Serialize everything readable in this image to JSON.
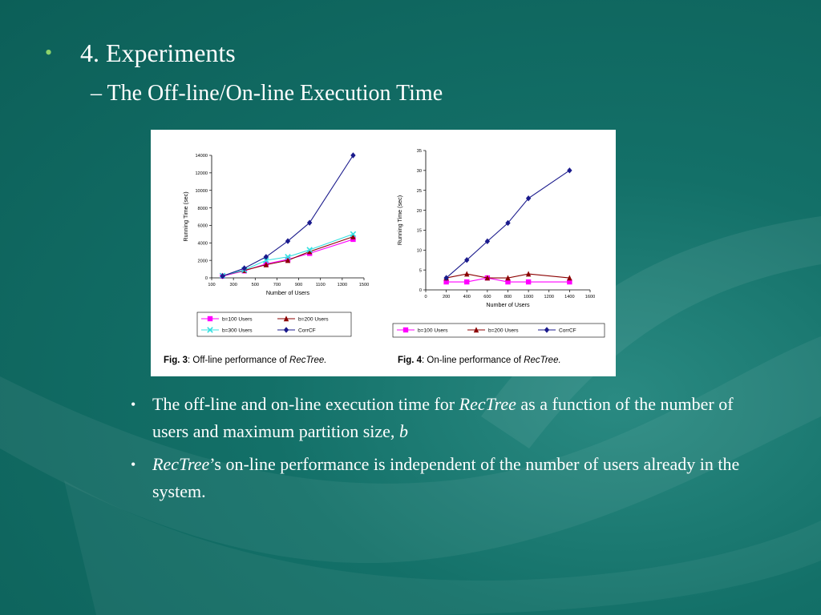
{
  "slide": {
    "heading": "4. Experiments",
    "subheading": "The Off-line/On-line Execution Time",
    "bullets": [
      {
        "before": "The off-line and on-line execution time for ",
        "em1": "RecTree",
        "after": " as a function of the number of users and maximum partition size, ",
        "em2": "b",
        "tail": ""
      },
      {
        "before": "",
        "em1": "RecTree",
        "after": "’s on-line performance is independent of the number of users already in the system.",
        "em2": "",
        "tail": ""
      }
    ]
  },
  "chart_data": [
    {
      "type": "line",
      "caption_label": "Fig. 3",
      "caption_text": ": Off-line performance of ",
      "caption_em": "RecTree.",
      "xlabel": "Number of Users",
      "ylabel": "Running Time (sec)",
      "xlim": [
        100,
        1500
      ],
      "ylim": [
        0,
        14000
      ],
      "xticks": [
        "100",
        "300",
        "500",
        "700",
        "900",
        "1100",
        "1300",
        "1500"
      ],
      "yticks": [
        "0",
        "2000",
        "4000",
        "6000",
        "8000",
        "10000",
        "12000",
        "14000"
      ],
      "legend_placement": "below",
      "series": [
        {
          "name": "b=100 Users",
          "color": "#ff00ff",
          "marker": "square",
          "x": [
            200,
            400,
            600,
            800,
            1000,
            1400
          ],
          "y": [
            200,
            800,
            1600,
            2100,
            2800,
            4400
          ]
        },
        {
          "name": "b=200 Users",
          "color": "#8b0000",
          "marker": "triangle",
          "x": [
            200,
            400,
            600,
            800,
            1000,
            1400
          ],
          "y": [
            250,
            850,
            1500,
            2000,
            3000,
            4700
          ]
        },
        {
          "name": "b=300 Users",
          "color": "#33e0e0",
          "marker": "x",
          "x": [
            200,
            400,
            600,
            800,
            1000,
            1400
          ],
          "y": [
            250,
            900,
            2000,
            2400,
            3200,
            5000
          ]
        },
        {
          "name": "CorrCF",
          "color": "#1a1a8c",
          "marker": "diamond",
          "x": [
            200,
            400,
            600,
            800,
            1000,
            1400
          ],
          "y": [
            200,
            1100,
            2400,
            4200,
            6300,
            14000
          ]
        }
      ]
    },
    {
      "type": "line",
      "caption_label": "Fig. 4",
      "caption_text": ": On-line performance of ",
      "caption_em": "RecTree.",
      "xlabel": "Number of Users",
      "ylabel": "Running Time (sec)",
      "xlim": [
        0,
        1600
      ],
      "ylim": [
        0,
        35
      ],
      "xticks": [
        "0",
        "200",
        "400",
        "600",
        "800",
        "1000",
        "1200",
        "1400",
        "1600"
      ],
      "yticks": [
        "0",
        "5",
        "10",
        "15",
        "20",
        "25",
        "30",
        "35"
      ],
      "legend_placement": "below",
      "series": [
        {
          "name": "b=100 Users",
          "color": "#ff00ff",
          "marker": "square",
          "x": [
            200,
            400,
            600,
            800,
            1000,
            1400
          ],
          "y": [
            2,
            2,
            3,
            2,
            2,
            2
          ]
        },
        {
          "name": "b=200 Users",
          "color": "#8b0000",
          "marker": "triangle",
          "x": [
            200,
            400,
            600,
            800,
            1000,
            1400
          ],
          "y": [
            3,
            4,
            3,
            3,
            4,
            3
          ]
        },
        {
          "name": "CorrCF",
          "color": "#1a1a8c",
          "marker": "diamond",
          "x": [
            200,
            400,
            600,
            800,
            1000,
            1400
          ],
          "y": [
            3,
            7.5,
            12.2,
            16.8,
            23,
            30
          ]
        }
      ]
    }
  ]
}
